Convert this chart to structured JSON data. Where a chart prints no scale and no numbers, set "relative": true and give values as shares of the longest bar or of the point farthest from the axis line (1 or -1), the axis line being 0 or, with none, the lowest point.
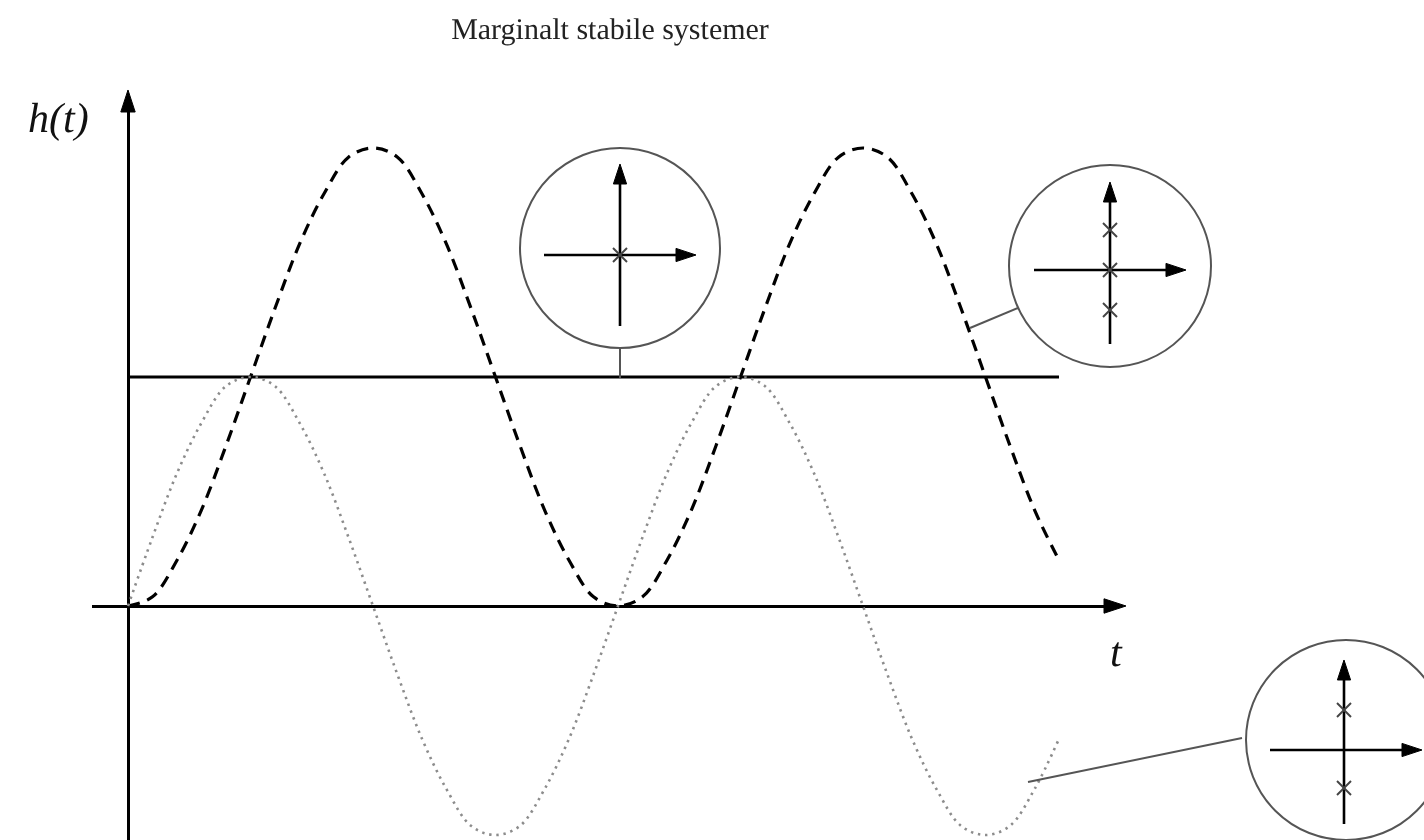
{
  "chart_data": {
    "type": "line",
    "title": "Marginalt stabile systemer",
    "xlabel": "t",
    "ylabel": "h(t)",
    "relative": true,
    "categories": [
      null,
      null,
      null,
      null,
      null,
      null,
      null,
      null,
      null,
      null,
      null,
      null,
      null,
      null,
      null,
      null,
      null,
      null,
      null,
      null,
      null,
      null,
      null,
      null,
      null,
      null,
      null,
      null,
      null,
      null,
      null,
      null,
      null,
      null,
      null,
      null,
      null,
      null,
      null
    ],
    "series": [
      {
        "color": "#000000",
        "line_style": "solid",
        "values": [
          0.5,
          0.5,
          0.5,
          0.5,
          0.5,
          0.5,
          0.5,
          0.5,
          0.5,
          0.5,
          0.5,
          0.5,
          0.5,
          0.5,
          0.5,
          0.5,
          0.5,
          0.5,
          0.5,
          0.5,
          0.5,
          0.5,
          0.5,
          0.5,
          0.5,
          0.5,
          0.5,
          0.5,
          0.5,
          0.5,
          0.5,
          0.5,
          0.5,
          0.5,
          0.5,
          0.5,
          0.5,
          0.5,
          0.5
        ]
      },
      {
        "color": "#000000",
        "line_style": "dashed",
        "values": [
          0,
          0.02,
          0.1,
          0.21,
          0.35,
          0.5,
          0.65,
          0.79,
          0.9,
          0.98,
          1,
          0.98,
          0.9,
          0.79,
          0.65,
          0.5,
          0.35,
          0.21,
          0.1,
          0.02,
          0,
          0.02,
          0.1,
          0.21,
          0.35,
          0.5,
          0.65,
          0.79,
          0.9,
          0.98,
          1,
          0.98,
          0.9,
          0.79,
          0.65,
          0.5,
          0.35,
          0.21,
          0.1
        ]
      },
      {
        "color": "#8c8c8c",
        "line_style": "dotted",
        "values": [
          0,
          0.15,
          0.29,
          0.4,
          0.48,
          0.5,
          0.48,
          0.4,
          0.29,
          0.15,
          0,
          -0.15,
          -0.29,
          -0.4,
          -0.48,
          -0.5,
          -0.48,
          -0.4,
          -0.29,
          -0.15,
          0,
          0.15,
          0.29,
          0.4,
          0.48,
          0.5,
          0.48,
          0.4,
          0.29,
          0.15,
          0,
          -0.15,
          -0.29,
          -0.4,
          -0.48,
          -0.5,
          -0.48,
          -0.4,
          -0.29
        ]
      }
    ]
  }
}
